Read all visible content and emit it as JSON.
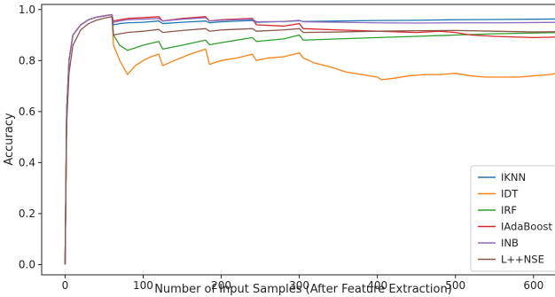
{
  "chart_data": {
    "type": "line",
    "title": "",
    "xlabel": "Number of Input Samples (After Feature Extraction)",
    "ylabel": "Accuracy",
    "xlim": [
      -30,
      640
    ],
    "ylim": [
      -0.04,
      1.02
    ],
    "x_ticks": [
      0,
      100,
      200,
      300,
      400,
      500,
      600
    ],
    "y_ticks": [
      0.0,
      0.2,
      0.4,
      0.6,
      0.8,
      1.0
    ],
    "x_tick_labels": [
      "0",
      "100",
      "200",
      "300",
      "400",
      "500",
      "600"
    ],
    "y_tick_labels": [
      "0.0",
      "0.2",
      "0.4",
      "0.6",
      "0.8",
      "1.0"
    ],
    "grid": false,
    "legend": "bottom-right",
    "series": [
      {
        "name": "IKNN",
        "color": "#1f77b4",
        "x": [
          0,
          2,
          5,
          10,
          20,
          30,
          40,
          50,
          60,
          62,
          70,
          80,
          100,
          120,
          125,
          150,
          180,
          185,
          200,
          240,
          245,
          280,
          300,
          305,
          350,
          400,
          450,
          500,
          550,
          600,
          630
        ],
        "y": [
          0.0,
          0.6,
          0.8,
          0.9,
          0.94,
          0.96,
          0.97,
          0.975,
          0.98,
          0.94,
          0.945,
          0.948,
          0.95,
          0.955,
          0.945,
          0.95,
          0.955,
          0.948,
          0.952,
          0.957,
          0.95,
          0.953,
          0.956,
          0.953,
          0.955,
          0.957,
          0.958,
          0.96,
          0.961,
          0.962,
          0.963
        ]
      },
      {
        "name": "IDT",
        "color": "#ff7f0e",
        "x": [
          0,
          2,
          5,
          10,
          20,
          30,
          40,
          50,
          60,
          62,
          70,
          80,
          90,
          100,
          110,
          120,
          125,
          140,
          160,
          180,
          185,
          200,
          220,
          240,
          245,
          260,
          280,
          300,
          305,
          320,
          340,
          360,
          380,
          400,
          405,
          420,
          440,
          460,
          480,
          500,
          520,
          540,
          560,
          580,
          600,
          620,
          630
        ],
        "y": [
          0.0,
          0.6,
          0.8,
          0.9,
          0.94,
          0.96,
          0.97,
          0.975,
          0.98,
          0.86,
          0.8,
          0.745,
          0.78,
          0.8,
          0.815,
          0.825,
          0.78,
          0.8,
          0.825,
          0.845,
          0.785,
          0.8,
          0.81,
          0.825,
          0.8,
          0.81,
          0.815,
          0.83,
          0.81,
          0.79,
          0.775,
          0.755,
          0.745,
          0.735,
          0.725,
          0.73,
          0.74,
          0.745,
          0.745,
          0.75,
          0.74,
          0.735,
          0.735,
          0.735,
          0.74,
          0.745,
          0.75
        ]
      },
      {
        "name": "IRF",
        "color": "#2ca02c",
        "x": [
          0,
          2,
          5,
          10,
          20,
          30,
          40,
          50,
          60,
          62,
          70,
          80,
          100,
          120,
          125,
          150,
          180,
          185,
          200,
          240,
          245,
          280,
          300,
          305,
          350,
          400,
          450,
          500,
          550,
          600,
          630
        ],
        "y": [
          0.0,
          0.6,
          0.8,
          0.9,
          0.94,
          0.96,
          0.97,
          0.975,
          0.98,
          0.9,
          0.86,
          0.84,
          0.86,
          0.875,
          0.845,
          0.86,
          0.88,
          0.862,
          0.87,
          0.89,
          0.875,
          0.885,
          0.9,
          0.88,
          0.885,
          0.89,
          0.895,
          0.9,
          0.905,
          0.908,
          0.91
        ]
      },
      {
        "name": "IAdaBoost",
        "color": "#d62728",
        "x": [
          0,
          2,
          5,
          10,
          20,
          30,
          40,
          50,
          60,
          62,
          70,
          80,
          100,
          120,
          125,
          150,
          180,
          185,
          200,
          240,
          245,
          280,
          300,
          305,
          350,
          400,
          450,
          480,
          500,
          520,
          550,
          600,
          630
        ],
        "y": [
          0.0,
          0.6,
          0.8,
          0.9,
          0.94,
          0.96,
          0.97,
          0.975,
          0.98,
          0.955,
          0.96,
          0.965,
          0.968,
          0.972,
          0.955,
          0.965,
          0.972,
          0.955,
          0.96,
          0.965,
          0.94,
          0.935,
          0.945,
          0.925,
          0.92,
          0.915,
          0.91,
          0.915,
          0.91,
          0.9,
          0.895,
          0.89,
          0.892
        ]
      },
      {
        "name": "INB",
        "color": "#9467bd",
        "x": [
          0,
          2,
          5,
          10,
          20,
          30,
          40,
          50,
          60,
          62,
          70,
          80,
          100,
          120,
          125,
          150,
          180,
          185,
          200,
          240,
          245,
          280,
          300,
          305,
          350,
          400,
          450,
          500,
          550,
          600,
          630
        ],
        "y": [
          0.0,
          0.6,
          0.8,
          0.9,
          0.94,
          0.96,
          0.97,
          0.975,
          0.98,
          0.95,
          0.955,
          0.96,
          0.962,
          0.965,
          0.955,
          0.962,
          0.968,
          0.955,
          0.958,
          0.962,
          0.952,
          0.953,
          0.958,
          0.952,
          0.95,
          0.948,
          0.947,
          0.948,
          0.948,
          0.949,
          0.95
        ]
      },
      {
        "name": "L++NSE",
        "color": "#8c564b",
        "x": [
          0,
          2,
          5,
          10,
          20,
          30,
          40,
          50,
          60,
          62,
          70,
          80,
          100,
          120,
          125,
          150,
          180,
          185,
          200,
          240,
          245,
          280,
          300,
          305,
          350,
          400,
          450,
          500,
          550,
          600,
          630
        ],
        "y": [
          0.0,
          0.55,
          0.75,
          0.86,
          0.92,
          0.945,
          0.958,
          0.966,
          0.972,
          0.9,
          0.905,
          0.91,
          0.915,
          0.922,
          0.91,
          0.918,
          0.925,
          0.915,
          0.92,
          0.925,
          0.915,
          0.92,
          0.925,
          0.91,
          0.912,
          0.915,
          0.917,
          0.918,
          0.915,
          0.912,
          0.913
        ]
      }
    ]
  }
}
